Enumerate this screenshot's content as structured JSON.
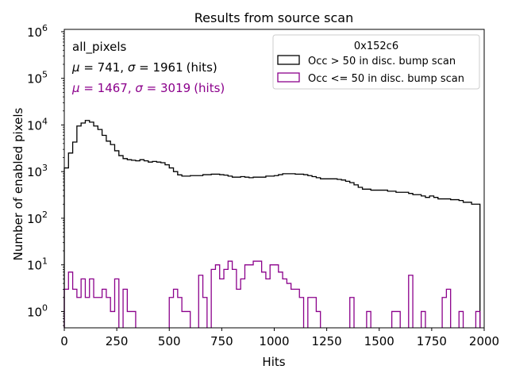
{
  "chart_data": {
    "type": "step-histogram",
    "title": "Results from source scan",
    "xlabel": "Hits",
    "ylabel": "Number of enabled pixels",
    "xlim": [
      0,
      2000
    ],
    "ylim_log10": [
      -0.35,
      6.05
    ],
    "yscale": "log",
    "x_ticks": [
      0,
      250,
      500,
      750,
      1000,
      1250,
      1500,
      1750,
      2000
    ],
    "x_tick_labels": [
      "0",
      "250",
      "500",
      "750",
      "1000",
      "1250",
      "1500",
      "1750",
      "2000"
    ],
    "y_tick_exponents": [
      0,
      1,
      2,
      3,
      4,
      5,
      6
    ],
    "y_tick_base": "10",
    "legend": {
      "title": "0x152c6",
      "placement": "top-right",
      "entries": [
        {
          "label": "Occ > 50 in disc. bump scan",
          "color": "#000000"
        },
        {
          "label": "Occ <= 50 in disc. bump scan",
          "color": "#8b008b"
        }
      ]
    },
    "annotations": {
      "group": "all_pixels",
      "stats": [
        {
          "mu_symbol": "μ",
          "sigma_symbol": "σ",
          "mu": "741",
          "sigma": "1961",
          "unit": "(hits)",
          "color": "#000000"
        },
        {
          "mu_symbol": "μ",
          "sigma_symbol": "σ",
          "mu": "1467",
          "sigma": "3019",
          "unit": "(hits)",
          "color": "#8b008b"
        }
      ]
    },
    "bin_width": 20,
    "bin_start": 0,
    "series": [
      {
        "name": "Occ > 50 in disc. bump scan",
        "color": "#000000",
        "values": [
          1200,
          2500,
          4300,
          9500,
          11000,
          12500,
          11500,
          9500,
          8000,
          6000,
          4500,
          3800,
          2800,
          2200,
          1900,
          1800,
          1750,
          1700,
          1800,
          1700,
          1600,
          1650,
          1600,
          1550,
          1400,
          1200,
          1000,
          850,
          800,
          800,
          820,
          820,
          820,
          860,
          860,
          880,
          880,
          860,
          840,
          800,
          760,
          760,
          780,
          760,
          740,
          760,
          760,
          760,
          800,
          800,
          820,
          860,
          900,
          900,
          900,
          880,
          880,
          860,
          820,
          780,
          740,
          700,
          700,
          700,
          700,
          680,
          660,
          620,
          580,
          520,
          460,
          420,
          420,
          400,
          400,
          400,
          400,
          380,
          380,
          360,
          360,
          360,
          340,
          320,
          320,
          300,
          280,
          300,
          280,
          260,
          260,
          260,
          250,
          250,
          240,
          220,
          220,
          200,
          200,
          0
        ]
      },
      {
        "name": "Occ <= 50 in disc. bump scan",
        "color": "#8b008b",
        "values": [
          3,
          7,
          3,
          2,
          5,
          2,
          5,
          2,
          2,
          3,
          2,
          1,
          5,
          0,
          3,
          1,
          1,
          0,
          0,
          0,
          0,
          0,
          0,
          0,
          0,
          2,
          3,
          2,
          1,
          1,
          0,
          0,
          6,
          2,
          0,
          8,
          10,
          5,
          8,
          12,
          8,
          3,
          5,
          10,
          10,
          12,
          12,
          7,
          5,
          10,
          10,
          7,
          5,
          4,
          3,
          3,
          2,
          0,
          2,
          2,
          1,
          0,
          0,
          0,
          0,
          0,
          0,
          0,
          2,
          0,
          0,
          0,
          1,
          0,
          0,
          0,
          0,
          0,
          1,
          1,
          0,
          0,
          6,
          0,
          0,
          1,
          0,
          0,
          0,
          0,
          2,
          3,
          0,
          0,
          1,
          0,
          0,
          0,
          1,
          0
        ]
      }
    ]
  }
}
